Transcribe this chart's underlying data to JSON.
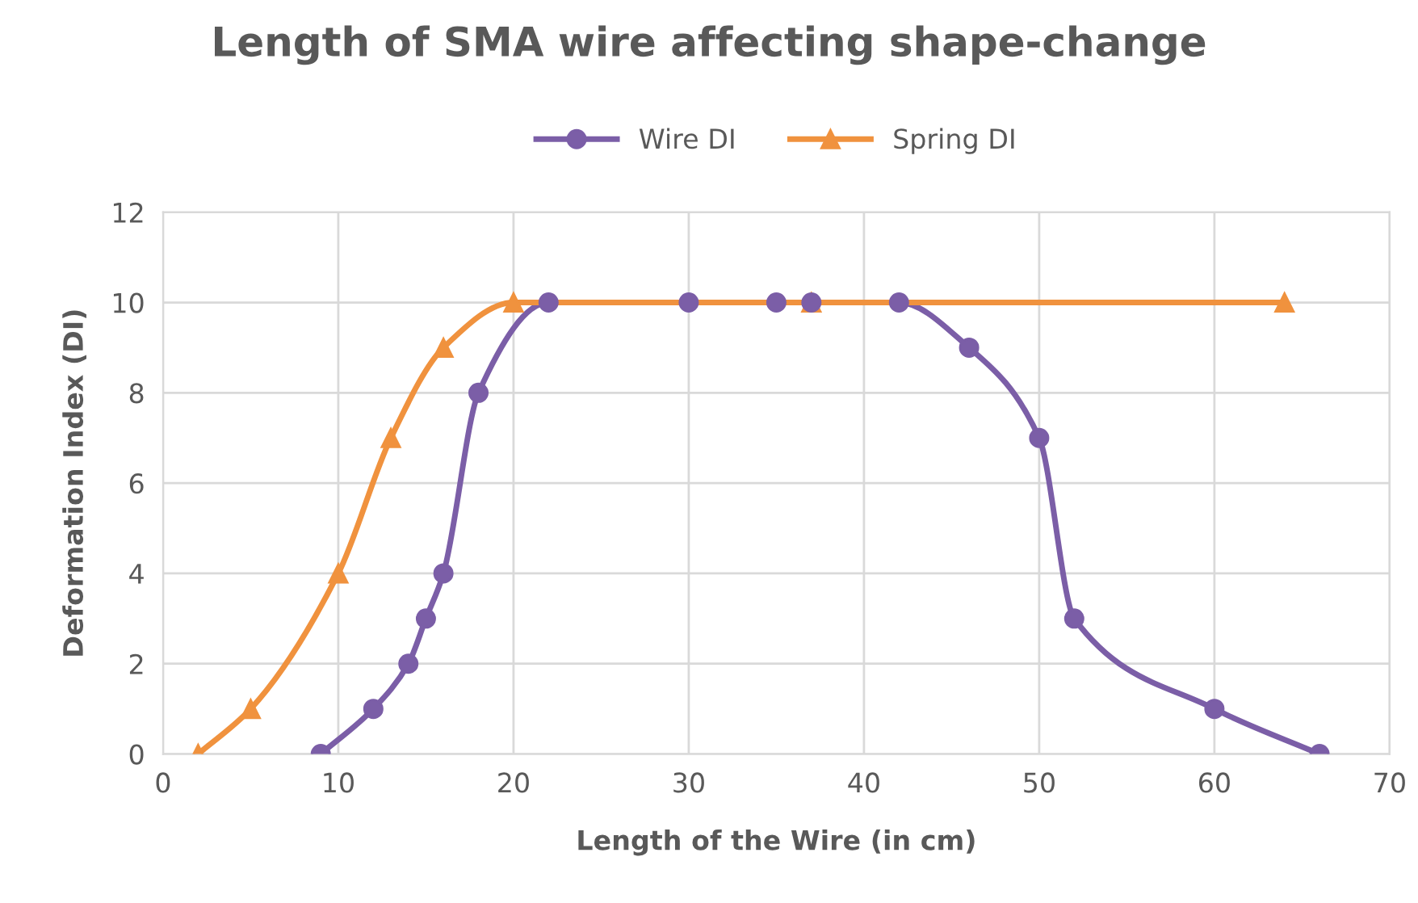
{
  "chart_data": {
    "type": "line",
    "title": "Length of SMA wire affecting shape-change",
    "xlabel": "Length of the Wire (in cm)",
    "ylabel": "Deformation Index (DI)",
    "series": [
      {
        "name": "Wire DI",
        "color": "#7b5ea7",
        "marker": "circle",
        "x": [
          9,
          12,
          14,
          15,
          16,
          18,
          22,
          30,
          35,
          37,
          42,
          46,
          50,
          52,
          60,
          66
        ],
        "values": [
          0,
          1,
          2,
          3,
          4,
          8,
          10,
          10,
          10,
          10,
          10,
          9,
          7,
          3,
          1,
          0
        ]
      },
      {
        "name": "Spring DI",
        "color": "#f0923e",
        "marker": "triangle",
        "x": [
          2,
          5,
          10,
          13,
          16,
          20,
          37,
          64
        ],
        "values": [
          0,
          1,
          4,
          7,
          9,
          10,
          10,
          10
        ]
      }
    ],
    "xlim": [
      0,
      70
    ],
    "xticks": [
      0,
      10,
      20,
      30,
      40,
      50,
      60,
      70
    ],
    "ylim": [
      0,
      12
    ],
    "yticks": [
      0,
      2,
      4,
      6,
      8,
      10,
      12
    ],
    "grid": true,
    "legend": "top",
    "line_style": "solid"
  }
}
